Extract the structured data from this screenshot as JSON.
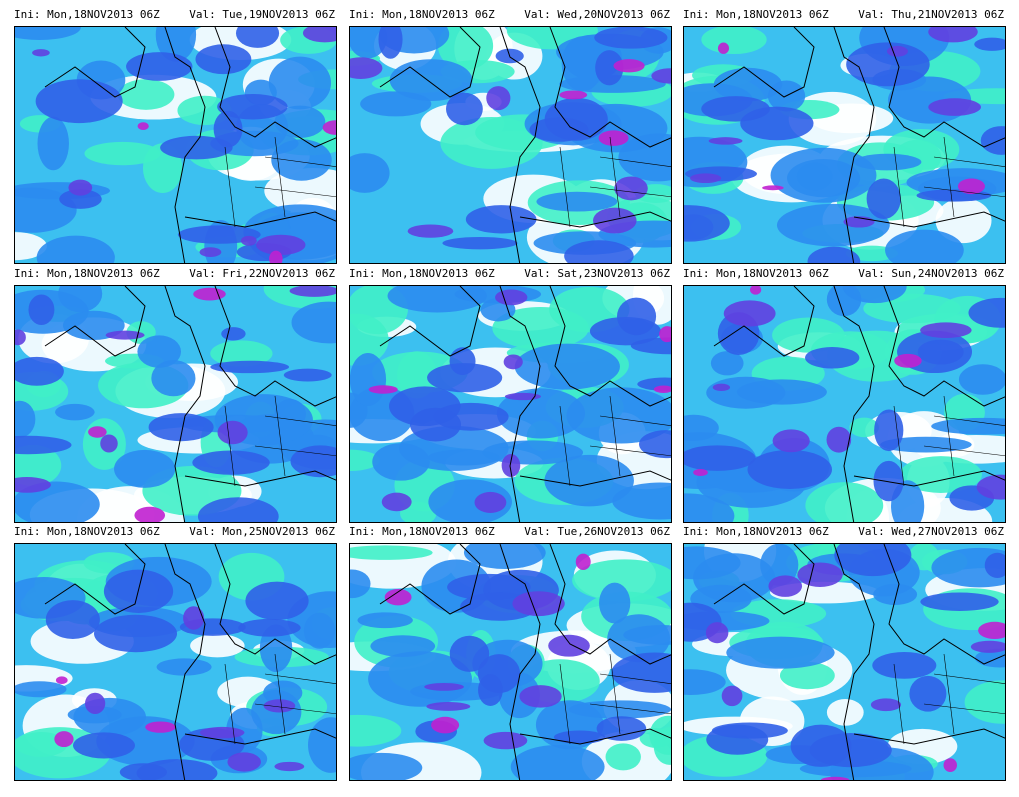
{
  "panels": [
    {
      "ini": "Ini: Mon,18NOV2013 06Z",
      "val": "Val: Tue,19NOV2013 06Z"
    },
    {
      "ini": "Ini: Mon,18NOV2013 06Z",
      "val": "Val: Wed,20NOV2013 06Z"
    },
    {
      "ini": "Ini: Mon,18NOV2013 06Z",
      "val": "Val: Thu,21NOV2013 06Z"
    },
    {
      "ini": "Ini: Mon,18NOV2013 06Z",
      "val": "Val: Fri,22NOV2013 06Z"
    },
    {
      "ini": "Ini: Mon,18NOV2013 06Z",
      "val": "Val: Sat,23NOV2013 06Z"
    },
    {
      "ini": "Ini: Mon,18NOV2013 06Z",
      "val": "Val: Sun,24NOV2013 06Z"
    },
    {
      "ini": "Ini: Mon,18NOV2013 06Z",
      "val": "Val: Mon,25NOV2013 06Z"
    },
    {
      "ini": "Ini: Mon,18NOV2013 06Z",
      "val": "Val: Tue,26NOV2013 06Z"
    },
    {
      "ini": "Ini: Mon,18NOV2013 06Z",
      "val": "Val: Wed,27NOV2013 06Z"
    }
  ]
}
